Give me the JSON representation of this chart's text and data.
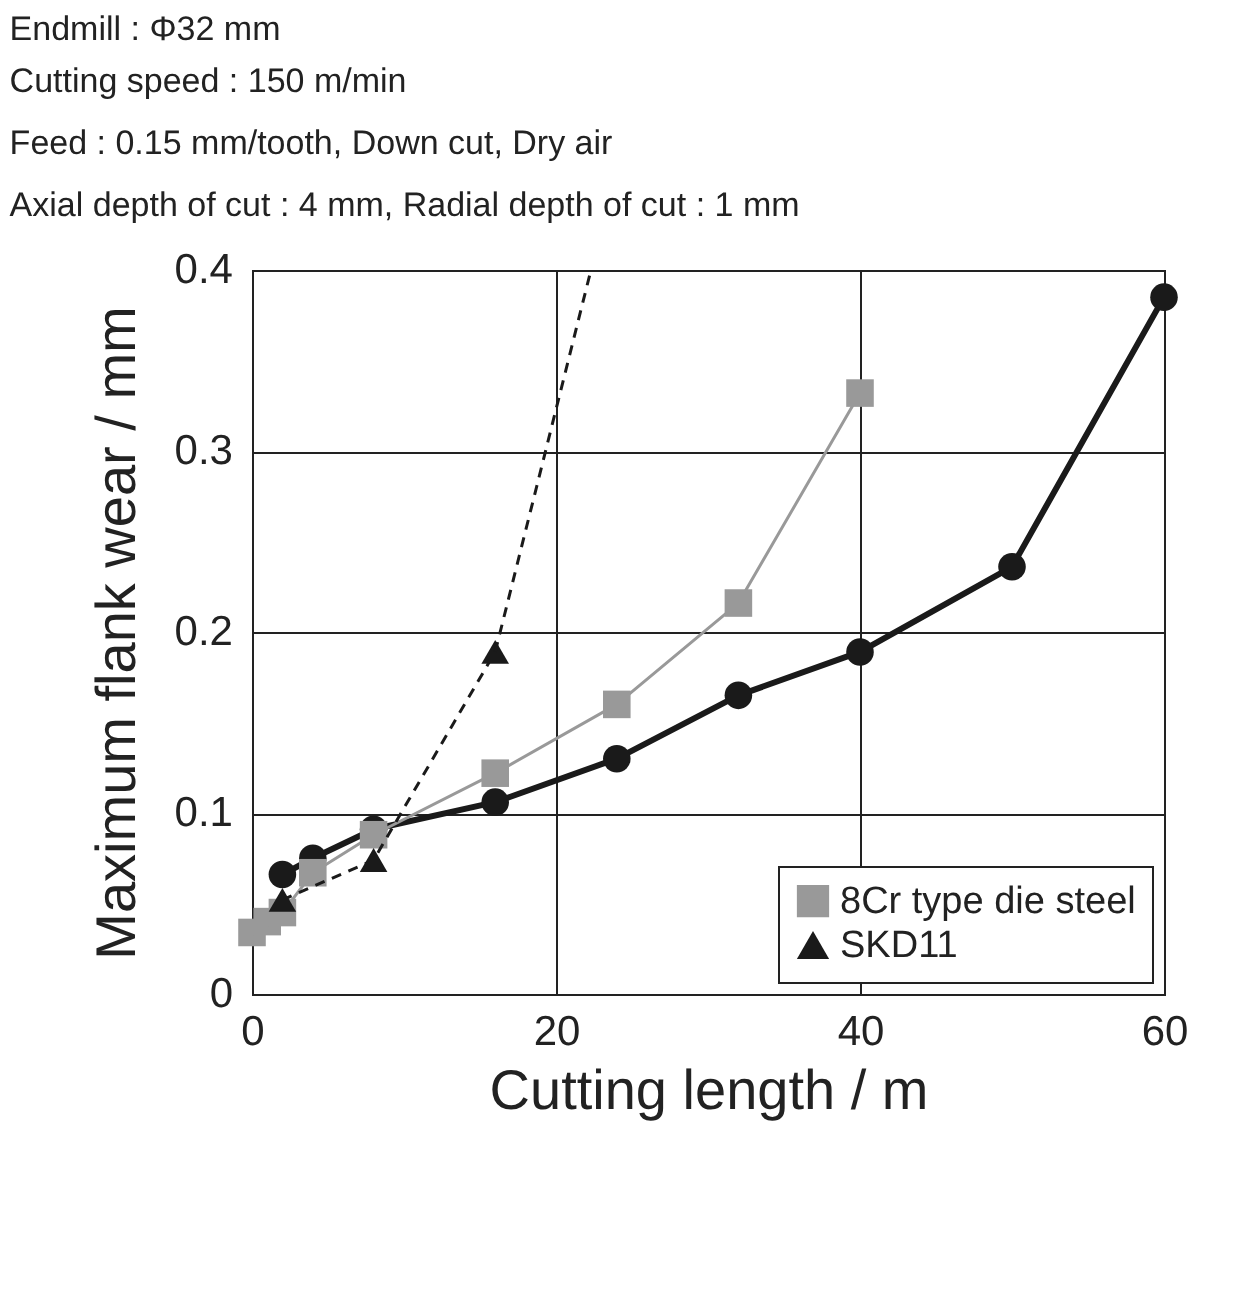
{
  "chart_data": {
    "type": "line",
    "title": "Endmill : Φ32 mm",
    "subtitle": "Cutting speed : 150 m/min\nFeed : 0.15 mm/tooth,  Down cut,  Dry air\nAxial depth of cut : 4 mm,  Radial depth of cut : 1 mm",
    "xlabel": "Cutting length / m",
    "ylabel": "Maximum flank wear / mm",
    "series": [
      {
        "color": "#1a1a1a",
        "marker": "circle",
        "line_style": "solid",
        "x": [
          2,
          4,
          8,
          16,
          24,
          32,
          40,
          50,
          60
        ],
        "values": [
          0.066,
          0.075,
          0.091,
          0.106,
          0.13,
          0.165,
          0.189,
          0.236,
          0.385
        ]
      },
      {
        "name": "8Cr type die steel",
        "color": "#999999",
        "marker": "square",
        "line_style": "solid",
        "x": [
          0,
          1,
          2,
          4,
          8,
          16,
          24,
          32,
          40
        ],
        "values": [
          0.034,
          0.04,
          0.045,
          0.067,
          0.088,
          0.122,
          0.16,
          0.216,
          0.332
        ]
      },
      {
        "name": "SKD11",
        "color": "#1a1a1a",
        "marker": "triangle",
        "line_style": "dashed",
        "x": [
          2,
          8,
          16
        ],
        "values": [
          0.052,
          0.074,
          0.189
        ]
      },
      {
        "color": "#1a1a1a",
        "marker": "none",
        "line_style": "dashed",
        "x": [
          16,
          22.3
        ],
        "values": [
          0.189,
          0.4
        ]
      }
    ],
    "xlim": [
      0,
      60
    ],
    "ylim": [
      0,
      0.4
    ],
    "xticks": [
      0,
      20,
      40,
      60
    ],
    "yticks": [
      0,
      0.1,
      0.2,
      0.3,
      0.4
    ],
    "grid": true,
    "legend": "bottom right"
  }
}
